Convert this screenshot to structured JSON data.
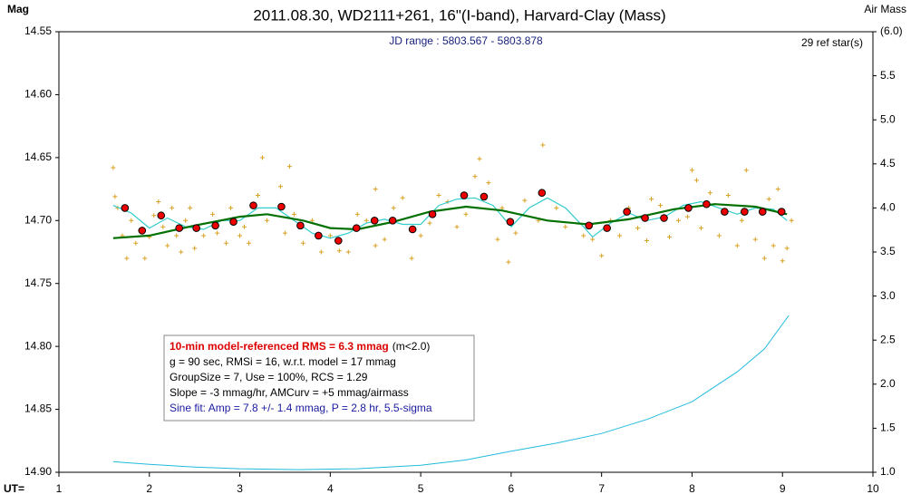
{
  "chart_data": {
    "type": "line",
    "title": "2011.08.30, WD2111+261, 16\"(I-band), Harvard-Clay (Mass)",
    "y_label": "Mag",
    "y2_label": "Air Mass",
    "x_label": "UT=",
    "annotations": {
      "jd_range": "JD range : 5803.567 - 5803.878",
      "ref_stars": "29 ref star(s)"
    },
    "stats_box": {
      "rms": "10-min model-referenced RMS = 6.3 mmag",
      "rms_note": "(m<2.0)",
      "line2": "g = 90 sec, RMSi = 16, w.r.t. model = 17 mmag",
      "line3": "GroupSize = 7, Use = 100%, RCS = 1.29",
      "line4": "Slope = -3 mmag/hr, AMCurv = +5 mmag/airmass",
      "line5": "Sine fit: Amp = 7.8 +/- 1.4 mmag, P = 2.8 hr, 5.5-sigma"
    },
    "xlim": [
      1,
      10
    ],
    "xticks": [
      1,
      2,
      3,
      4,
      5,
      6,
      7,
      8,
      9,
      10
    ],
    "ylim": [
      14.55,
      14.9
    ],
    "y_inverted": true,
    "yticks": [
      {
        "value": 14.55,
        "label": "14.55"
      },
      {
        "value": 14.6,
        "label": "14.60"
      },
      {
        "value": 14.65,
        "label": "14.65"
      },
      {
        "value": 14.7,
        "label": "14.70"
      },
      {
        "value": 14.75,
        "label": "14.75"
      },
      {
        "value": 14.8,
        "label": "14.80"
      },
      {
        "value": 14.85,
        "label": "14.85"
      },
      {
        "value": 14.9,
        "label": "14.90"
      }
    ],
    "y2lim": [
      1.0,
      6.0
    ],
    "y2ticks": [
      {
        "value": 1.0,
        "label": "1.0"
      },
      1.5,
      {
        "value": 2.0,
        "label": "2.0"
      },
      2.5,
      {
        "value": 3.0,
        "label": "3.0"
      },
      3.5,
      {
        "value": 4.0,
        "label": "4.0"
      },
      4.5,
      {
        "value": 5.0,
        "label": "5.0"
      },
      5.5,
      {
        "value": 6.0,
        "label": "(6.0)"
      }
    ],
    "grid": false,
    "series": [
      {
        "style": "crosses",
        "color": "#d9a020",
        "x": [
          1.6,
          1.62,
          1.65,
          1.7,
          1.75,
          1.8,
          1.85,
          1.9,
          1.95,
          2.0,
          2.05,
          2.1,
          2.15,
          2.2,
          2.25,
          2.3,
          2.35,
          2.4,
          2.45,
          2.5,
          2.6,
          2.7,
          2.75,
          2.85,
          2.9,
          3.0,
          3.05,
          3.1,
          3.2,
          3.25,
          3.3,
          3.45,
          3.5,
          3.55,
          3.6,
          3.7,
          3.8,
          3.9,
          4.0,
          4.1,
          4.2,
          4.3,
          4.4,
          4.5,
          4.5,
          4.6,
          4.7,
          4.8,
          4.9,
          5.0,
          5.1,
          5.2,
          5.3,
          5.4,
          5.5,
          5.6,
          5.65,
          5.75,
          5.85,
          5.9,
          5.97,
          6.05,
          6.15,
          6.3,
          6.35,
          6.5,
          6.6,
          6.8,
          6.9,
          7.0,
          7.1,
          7.2,
          7.3,
          7.4,
          7.5,
          7.55,
          7.65,
          7.75,
          7.85,
          7.95,
          8.0,
          8.05,
          8.1,
          8.2,
          8.3,
          8.4,
          8.5,
          8.55,
          8.6,
          8.7,
          8.8,
          8.85,
          8.9,
          8.95,
          9.0,
          9.05,
          9.1
        ],
        "values": [
          14.658,
          14.681,
          14.69,
          14.712,
          14.73,
          14.7,
          14.718,
          14.708,
          14.73,
          14.713,
          14.696,
          14.685,
          14.705,
          14.72,
          14.69,
          14.712,
          14.725,
          14.7,
          14.69,
          14.722,
          14.712,
          14.695,
          14.71,
          14.718,
          14.69,
          14.712,
          14.705,
          14.718,
          14.68,
          14.65,
          14.7,
          14.673,
          14.71,
          14.657,
          14.695,
          14.718,
          14.7,
          14.725,
          14.712,
          14.724,
          14.725,
          14.695,
          14.7,
          14.72,
          14.675,
          14.715,
          14.69,
          14.682,
          14.73,
          14.712,
          14.702,
          14.68,
          14.685,
          14.705,
          14.695,
          14.665,
          14.651,
          14.67,
          14.715,
          14.69,
          14.733,
          14.71,
          14.684,
          14.7,
          14.64,
          14.69,
          14.705,
          14.712,
          14.715,
          14.728,
          14.7,
          14.712,
          14.69,
          14.706,
          14.716,
          14.683,
          14.688,
          14.713,
          14.7,
          14.697,
          14.66,
          14.668,
          14.706,
          14.678,
          14.712,
          14.68,
          14.72,
          14.7,
          14.66,
          14.715,
          14.73,
          14.683,
          14.72,
          14.675,
          14.732,
          14.722,
          14.7
        ]
      },
      {
        "style": "line",
        "color": "#33cccc",
        "width": 1.2,
        "x": [
          1.6,
          1.8,
          2.0,
          2.2,
          2.4,
          2.6,
          2.8,
          3.0,
          3.2,
          3.4,
          3.6,
          3.8,
          4.0,
          4.2,
          4.4,
          4.6,
          4.8,
          5.0,
          5.2,
          5.4,
          5.6,
          5.8,
          6.0,
          6.2,
          6.4,
          6.6,
          6.8,
          6.9,
          7.1,
          7.3,
          7.5,
          7.7,
          7.9,
          8.1,
          8.3,
          8.5,
          8.7,
          8.9,
          9.05
        ],
        "values": [
          14.688,
          14.694,
          14.706,
          14.698,
          14.705,
          14.707,
          14.7,
          14.7,
          14.69,
          14.69,
          14.7,
          14.71,
          14.714,
          14.71,
          14.702,
          14.699,
          14.703,
          14.703,
          14.688,
          14.683,
          14.682,
          14.688,
          14.705,
          14.69,
          14.682,
          14.69,
          14.705,
          14.713,
          14.702,
          14.694,
          14.7,
          14.697,
          14.688,
          14.685,
          14.69,
          14.695,
          14.69,
          14.691,
          14.7
        ]
      },
      {
        "style": "line",
        "color": "#007000",
        "width": 2.2,
        "x": [
          1.6,
          2.0,
          2.5,
          3.0,
          3.3,
          3.7,
          4.0,
          4.3,
          4.7,
          5.1,
          5.5,
          5.9,
          6.4,
          6.85,
          7.3,
          7.8,
          8.25,
          8.7,
          9.05
        ],
        "values": [
          14.714,
          14.712,
          14.704,
          14.697,
          14.695,
          14.7,
          14.706,
          14.707,
          14.701,
          14.693,
          14.689,
          14.692,
          14.7,
          14.703,
          14.699,
          14.691,
          14.687,
          14.689,
          14.695
        ]
      },
      {
        "style": "dots",
        "color": "#ee0000",
        "x": [
          1.73,
          1.92,
          2.13,
          2.33,
          2.52,
          2.73,
          2.93,
          3.15,
          3.46,
          3.67,
          3.87,
          4.09,
          4.29,
          4.49,
          4.69,
          4.91,
          5.13,
          5.48,
          5.7,
          5.99,
          6.34,
          6.86,
          7.06,
          7.28,
          7.48,
          7.69,
          7.96,
          8.16,
          8.36,
          8.58,
          8.78,
          8.99
        ],
        "values": [
          14.69,
          14.708,
          14.696,
          14.706,
          14.706,
          14.704,
          14.701,
          14.688,
          14.689,
          14.704,
          14.712,
          14.716,
          14.706,
          14.7,
          14.7,
          14.707,
          14.695,
          14.68,
          14.681,
          14.701,
          14.678,
          14.704,
          14.706,
          14.693,
          14.698,
          14.698,
          14.69,
          14.687,
          14.693,
          14.693,
          14.693,
          14.693
        ]
      },
      {
        "style": "line",
        "axis": "y2",
        "color": "#22bbdd",
        "width": 1,
        "x": [
          1.6,
          2.0,
          2.5,
          3.0,
          3.65,
          4.3,
          5.0,
          5.5,
          6.0,
          6.5,
          7.0,
          7.5,
          8.0,
          8.5,
          8.8,
          9.07
        ],
        "values": [
          1.12,
          1.09,
          1.06,
          1.04,
          1.03,
          1.04,
          1.08,
          1.14,
          1.24,
          1.33,
          1.44,
          1.6,
          1.8,
          2.14,
          2.4,
          2.78
        ]
      }
    ]
  }
}
